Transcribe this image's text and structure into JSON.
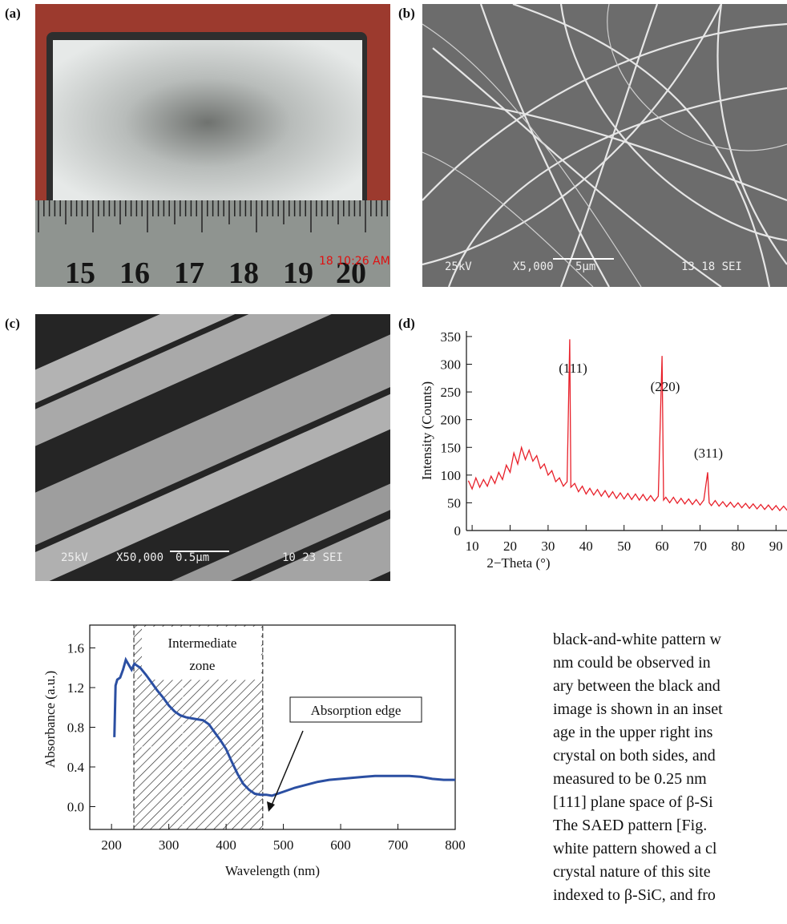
{
  "figure": {
    "panel_labels": [
      "(a)",
      "(b)",
      "(c)",
      "(d)"
    ],
    "ruler_numbers": [
      "15",
      "16",
      "17",
      "18",
      "19",
      "20"
    ],
    "timestamp": "18 10:26 AM",
    "sem_b": [
      "25kV",
      "X5,000",
      "5μm",
      "13 18 SEI"
    ],
    "sem_c": [
      "25kV",
      "X50,000",
      "0.5μm",
      "10 23 SEI"
    ]
  },
  "chart_data": [
    {
      "type": "line",
      "ylabel": "Intensity (Counts)",
      "xlabel": "2−Theta (°)",
      "color": "#e8202a",
      "frame": false,
      "xlim": [
        8.5,
        93
      ],
      "ylim": [
        0,
        360
      ],
      "xticks": [
        10,
        20,
        30,
        40,
        50,
        60,
        70,
        80,
        90
      ],
      "yticks": [
        0,
        50,
        100,
        150,
        200,
        250,
        300,
        350
      ],
      "annotations": [
        "(111)",
        "(220)",
        "(311)"
      ],
      "x": [
        9,
        10,
        11,
        12,
        13,
        14,
        15,
        16,
        17,
        18,
        19,
        20,
        21,
        22,
        23,
        24,
        25,
        26,
        27,
        28,
        29,
        30,
        31,
        32,
        33,
        34,
        35,
        35.7,
        36,
        37,
        38,
        39,
        40,
        41,
        42,
        43,
        44,
        45,
        46,
        47,
        48,
        49,
        50,
        51,
        52,
        53,
        54,
        55,
        56,
        57,
        58,
        59,
        60,
        60.4,
        61,
        62,
        63,
        64,
        65,
        66,
        67,
        68,
        69,
        70,
        71,
        72,
        72.4,
        73,
        74,
        75,
        76,
        77,
        78,
        79,
        80,
        81,
        82,
        83,
        84,
        85,
        86,
        87,
        88,
        89,
        90,
        91,
        92,
        93
      ],
      "values": [
        90,
        75,
        95,
        78,
        92,
        80,
        98,
        85,
        105,
        92,
        118,
        105,
        140,
        120,
        150,
        128,
        145,
        125,
        135,
        112,
        120,
        100,
        108,
        88,
        95,
        80,
        88,
        345,
        78,
        85,
        70,
        80,
        66,
        76,
        64,
        74,
        62,
        72,
        60,
        70,
        58,
        68,
        57,
        67,
        56,
        66,
        55,
        65,
        54,
        63,
        53,
        62,
        315,
        55,
        60,
        50,
        60,
        49,
        58,
        48,
        57,
        47,
        56,
        46,
        55,
        105,
        50,
        45,
        54,
        44,
        52,
        43,
        51,
        42,
        50,
        41,
        49,
        40,
        48,
        39,
        47,
        38,
        46,
        37,
        45,
        36,
        44,
        36
      ]
    },
    {
      "type": "line",
      "ylabel": "Absorbance (a.u.)",
      "xlabel": "Wavelength (nm)",
      "color": "#2b4fa2",
      "frame": true,
      "xlim": [
        162,
        800
      ],
      "ylim": [
        -0.23,
        1.83
      ],
      "xticks": [
        200,
        300,
        400,
        500,
        600,
        700,
        800
      ],
      "yticks": [
        {
          "value": 0,
          "label": "0.0"
        },
        {
          "value": 0.4,
          "label": "0.4"
        },
        {
          "value": 0.8,
          "label": "0.8"
        },
        {
          "value": 1.2,
          "label": "1.2"
        },
        {
          "value": 1.6,
          "label": "1.6"
        }
      ],
      "zone": [
        239,
        464
      ],
      "zone_label": [
        "Intermediate",
        "zone"
      ],
      "edge_label": "Absorption edge",
      "x": [
        205,
        207,
        210,
        215,
        220,
        225,
        230,
        235,
        240,
        245,
        250,
        260,
        270,
        280,
        290,
        300,
        310,
        320,
        330,
        340,
        350,
        360,
        370,
        380,
        390,
        400,
        410,
        420,
        430,
        440,
        450,
        460,
        470,
        480,
        490,
        500,
        520,
        540,
        560,
        580,
        600,
        620,
        640,
        660,
        680,
        700,
        720,
        740,
        760,
        780,
        800
      ],
      "values": [
        0.7,
        1.22,
        1.28,
        1.3,
        1.38,
        1.48,
        1.43,
        1.38,
        1.44,
        1.42,
        1.4,
        1.33,
        1.25,
        1.17,
        1.1,
        1.02,
        0.96,
        0.92,
        0.9,
        0.89,
        0.88,
        0.87,
        0.83,
        0.75,
        0.67,
        0.58,
        0.45,
        0.33,
        0.23,
        0.17,
        0.13,
        0.12,
        0.12,
        0.11,
        0.13,
        0.15,
        0.19,
        0.22,
        0.25,
        0.27,
        0.28,
        0.29,
        0.3,
        0.31,
        0.31,
        0.31,
        0.31,
        0.3,
        0.28,
        0.27,
        0.27
      ]
    }
  ],
  "body": {
    "lines": [
      "black-and-white pattern w",
      "nm could be observed in",
      "ary between the black and",
      "image is shown in an inset",
      "age in the upper right ins",
      "crystal on both sides, and",
      "measured to be 0.25 nm",
      "[111] plane space of β-Si",
      "The SAED pattern [Fig.",
      "white pattern showed a cl",
      "crystal nature of this site",
      "indexed to β-SiC, and fro"
    ]
  }
}
